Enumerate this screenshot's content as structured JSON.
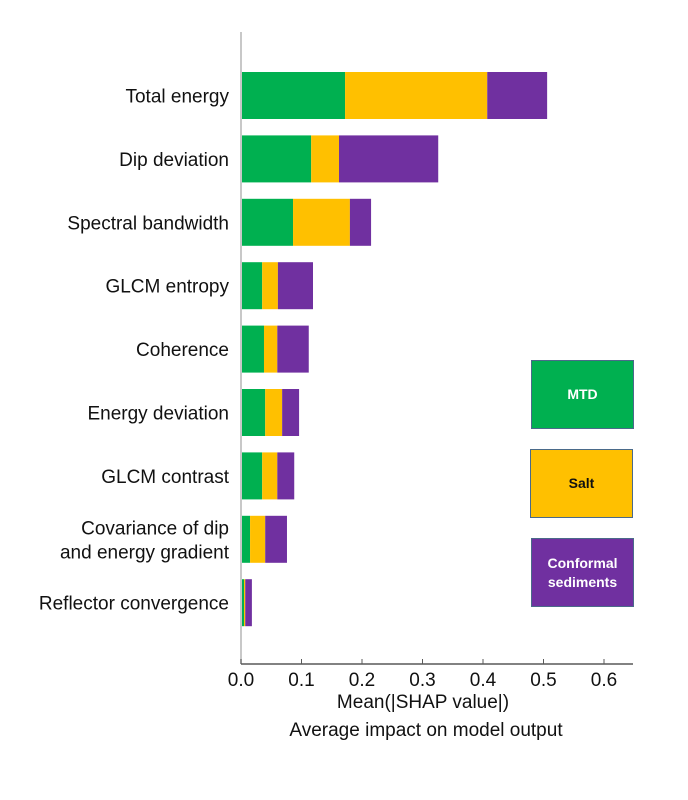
{
  "chart_data": {
    "type": "bar",
    "orientation": "horizontal",
    "stacked": true,
    "title": "",
    "xlabel": "Mean(|SHAP value|)",
    "xlabel_sub": "Average impact on model output",
    "ylabel": "",
    "xlim": [
      0.0,
      0.65
    ],
    "xticks": [
      0.0,
      0.1,
      0.2,
      0.3,
      0.4,
      0.5,
      0.6
    ],
    "xtick_labels": [
      "0.0",
      "0.1",
      "0.2",
      "0.3",
      "0.4",
      "0.5",
      "0.6"
    ],
    "grid": false,
    "legend_position": "right",
    "categories": [
      [
        "Total energy"
      ],
      [
        "Dip deviation"
      ],
      [
        "Spectral bandwidth"
      ],
      [
        "GLCM entropy"
      ],
      [
        "Coherence"
      ],
      [
        "Energy deviation"
      ],
      [
        "GLCM contrast"
      ],
      [
        "Covariance of dip",
        "and energy gradient"
      ],
      [
        "Reflector convergence"
      ]
    ],
    "series": [
      {
        "name": "MTD",
        "color": "#00b050",
        "text_color": "#ffffff",
        "values": [
          0.172,
          0.116,
          0.086,
          0.035,
          0.038,
          0.04,
          0.035,
          0.015,
          0.005
        ]
      },
      {
        "name": "Salt",
        "color": "#ffc000",
        "text_color": "#111111",
        "values": [
          0.235,
          0.046,
          0.094,
          0.026,
          0.022,
          0.028,
          0.025,
          0.025,
          0.002
        ]
      },
      {
        "name": "Conformal sediments",
        "color": "#7030a0",
        "text_color": "#ffffff",
        "values": [
          0.099,
          0.164,
          0.035,
          0.058,
          0.052,
          0.028,
          0.028,
          0.036,
          0.011
        ]
      }
    ]
  },
  "legend": {
    "items": [
      {
        "label_lines": [
          "MTD"
        ]
      },
      {
        "label_lines": [
          "Salt"
        ]
      },
      {
        "label_lines": [
          "Conformal",
          "sediments"
        ]
      }
    ]
  }
}
